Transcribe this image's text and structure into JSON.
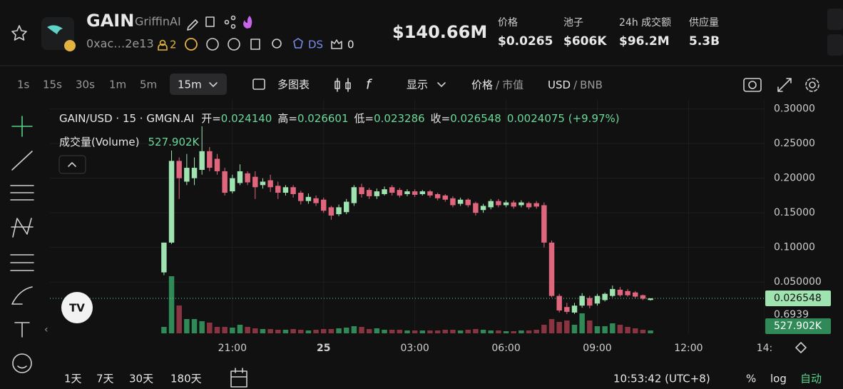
{
  "header": {
    "symbol": "GAIN",
    "name": "GriffinAI",
    "address": "0xac…2e13",
    "holders": "2",
    "ds": "DS",
    "favorites": "0",
    "market_cap": "$140.66M",
    "stats": [
      {
        "label": "价格",
        "value": "$0.0265"
      },
      {
        "label": "池子",
        "value": "$606K"
      },
      {
        "label": "24h 成交额",
        "value": "$96.2M"
      },
      {
        "label": "供应量",
        "value": "5.3B"
      }
    ]
  },
  "toolbar": {
    "intervals": [
      "1s",
      "15s",
      "30s",
      "1m",
      "5m",
      "15m"
    ],
    "selected_interval": 5,
    "multi_chart": "多图表",
    "display": "显示",
    "price_toggle": {
      "active": "价格",
      "separator": "/",
      "inactive": "市值"
    },
    "currency_toggle": {
      "active": "USD",
      "separator": "/",
      "inactive": "BNB"
    }
  },
  "legend": {
    "pair": "GAIN/USD · 15 · GMGN.AI",
    "open_label": "开=",
    "open": "0.024140",
    "high_label": "高=",
    "high": "0.026601",
    "low_label": "低=",
    "low": "0.023286",
    "close_label": "收=",
    "change": "0.0024075 (+9.97%)",
    "volume_label": "成交量(Volume)"
  },
  "axis_overlay_text": "0.6939",
  "chart_data": {
    "type": "candlestick",
    "x": [
      18.75,
      19,
      19.25,
      19.5,
      19.75,
      20,
      20.25,
      20.5,
      20.75,
      21,
      21.25,
      21.5,
      21.75,
      22,
      22.25,
      22.5,
      22.75,
      23,
      23.25,
      23.5,
      23.75,
      24,
      24.25,
      24.5,
      24.75,
      25,
      25.25,
      25.5,
      25.75,
      26,
      26.25,
      26.5,
      26.75,
      27,
      27.25,
      27.5,
      27.75,
      28,
      28.25,
      28.5,
      28.75,
      29,
      29.25,
      29.5,
      29.75,
      30,
      30.25,
      30.5,
      30.75,
      31,
      31.25,
      31.5,
      31.75,
      32,
      32.25,
      32.5,
      32.75,
      33,
      33.25,
      33.5,
      33.75,
      34,
      34.25,
      34.5,
      34.75
    ],
    "open": [
      0.064,
      0.107,
      0.225,
      0.195,
      0.2,
      0.212,
      0.239,
      0.228,
      0.21,
      0.181,
      0.193,
      0.207,
      0.202,
      0.19,
      0.197,
      0.189,
      0.179,
      0.187,
      0.179,
      0.167,
      0.171,
      0.169,
      0.158,
      0.148,
      0.151,
      0.164,
      0.187,
      0.183,
      0.174,
      0.177,
      0.187,
      0.183,
      0.177,
      0.181,
      0.177,
      0.181,
      0.177,
      0.175,
      0.171,
      0.163,
      0.169,
      0.164,
      0.154,
      0.158,
      0.167,
      0.161,
      0.165,
      0.161,
      0.164,
      0.164,
      0.161,
      0.107,
      0.03,
      0.014,
      0.006,
      0.016,
      0.027,
      0.019,
      0.024,
      0.03,
      0.039,
      0.037,
      0.035,
      0.031,
      0.02414
    ],
    "high": [
      0.107,
      0.24,
      0.23,
      0.235,
      0.23,
      0.275,
      0.245,
      0.235,
      0.215,
      0.205,
      0.22,
      0.21,
      0.21,
      0.2,
      0.205,
      0.195,
      0.19,
      0.19,
      0.182,
      0.178,
      0.175,
      0.172,
      0.16,
      0.162,
      0.17,
      0.19,
      0.192,
      0.186,
      0.185,
      0.188,
      0.19,
      0.186,
      0.184,
      0.184,
      0.183,
      0.183,
      0.179,
      0.177,
      0.174,
      0.172,
      0.171,
      0.166,
      0.163,
      0.17,
      0.17,
      0.168,
      0.168,
      0.168,
      0.166,
      0.167,
      0.165,
      0.11,
      0.033,
      0.02,
      0.02,
      0.034,
      0.03,
      0.033,
      0.035,
      0.045,
      0.043,
      0.04,
      0.037,
      0.032,
      0.026601
    ],
    "low": [
      0.06,
      0.105,
      0.17,
      0.19,
      0.19,
      0.205,
      0.21,
      0.205,
      0.175,
      0.178,
      0.19,
      0.19,
      0.17,
      0.185,
      0.18,
      0.17,
      0.175,
      0.172,
      0.162,
      0.163,
      0.16,
      0.15,
      0.14,
      0.145,
      0.148,
      0.16,
      0.172,
      0.17,
      0.17,
      0.175,
      0.175,
      0.172,
      0.174,
      0.173,
      0.175,
      0.172,
      0.168,
      0.166,
      0.158,
      0.16,
      0.158,
      0.146,
      0.15,
      0.155,
      0.158,
      0.158,
      0.156,
      0.158,
      0.155,
      0.156,
      0.1,
      0.028,
      0.006,
      0.004,
      0.004,
      0.013,
      0.012,
      0.016,
      0.022,
      0.028,
      0.029,
      0.029,
      0.027,
      0.024,
      0.023286
    ],
    "close": [
      0.107,
      0.225,
      0.2,
      0.215,
      0.215,
      0.239,
      0.215,
      0.21,
      0.179,
      0.2,
      0.21,
      0.194,
      0.187,
      0.195,
      0.187,
      0.179,
      0.187,
      0.177,
      0.167,
      0.173,
      0.164,
      0.153,
      0.146,
      0.158,
      0.166,
      0.187,
      0.177,
      0.174,
      0.181,
      0.184,
      0.179,
      0.175,
      0.181,
      0.176,
      0.181,
      0.175,
      0.171,
      0.169,
      0.161,
      0.169,
      0.161,
      0.15,
      0.16,
      0.167,
      0.161,
      0.165,
      0.159,
      0.165,
      0.158,
      0.159,
      0.107,
      0.03,
      0.009,
      0.007,
      0.016,
      0.03,
      0.016,
      0.03,
      0.033,
      0.04,
      0.031,
      0.031,
      0.029,
      0.026,
      0.026548
    ],
    "volume": [
      1188000,
      10560000,
      5148000,
      2640000,
      2640000,
      2244000,
      1980000,
      1188000,
      1188000,
      1056000,
      1584000,
      1188000,
      924000,
      792000,
      792000,
      660000,
      660000,
      792000,
      660000,
      528000,
      660000,
      792000,
      792000,
      924000,
      1056000,
      1320000,
      1188000,
      792000,
      924000,
      660000,
      660000,
      660000,
      528000,
      528000,
      528000,
      528000,
      528000,
      660000,
      660000,
      528000,
      660000,
      792000,
      660000,
      528000,
      528000,
      396000,
      396000,
      528000,
      528000,
      660000,
      1584000,
      2640000,
      2112000,
      2376000,
      1584000,
      3696000,
      2376000,
      1320000,
      1320000,
      1848000,
      1584000,
      1188000,
      924000,
      660000,
      527902
    ],
    "last_price_label": "0.026548",
    "last_volume_label": "527.902K",
    "up_color": "#9fe3b1",
    "down_color": "#e0667e",
    "volume_up_color": "#2f8a58",
    "volume_down_color": "#8a3442",
    "xlim": [
      15,
      38.5
    ],
    "xticks": [
      {
        "value": 21,
        "label": "21:00"
      },
      {
        "value": 24,
        "label": "25"
      },
      {
        "value": 27,
        "label": "03:00"
      },
      {
        "value": 30,
        "label": "06:00"
      },
      {
        "value": 33,
        "label": "09:00"
      },
      {
        "value": 36,
        "label": "12:00"
      },
      {
        "value": 38.5,
        "label": "14:"
      }
    ],
    "ylim": [
      -0.024,
      0.313
    ],
    "yticks": [
      {
        "value": 0.3,
        "label": "0.30000"
      },
      {
        "value": 0.25,
        "label": "0.25000"
      },
      {
        "value": 0.2,
        "label": "0.20000"
      },
      {
        "value": 0.15,
        "label": "0.15000"
      },
      {
        "value": 0.1,
        "label": "0.10000"
      },
      {
        "value": 0.05,
        "label": "0.050000"
      }
    ],
    "volume_lim": [
      0,
      43164000
    ],
    "grid": true
  },
  "footer": {
    "ranges": [
      "1天",
      "7天",
      "30天",
      "180天"
    ],
    "clock": "10:53:42 (UTC+8)",
    "percent": "%",
    "log": "log",
    "auto": "自动"
  }
}
